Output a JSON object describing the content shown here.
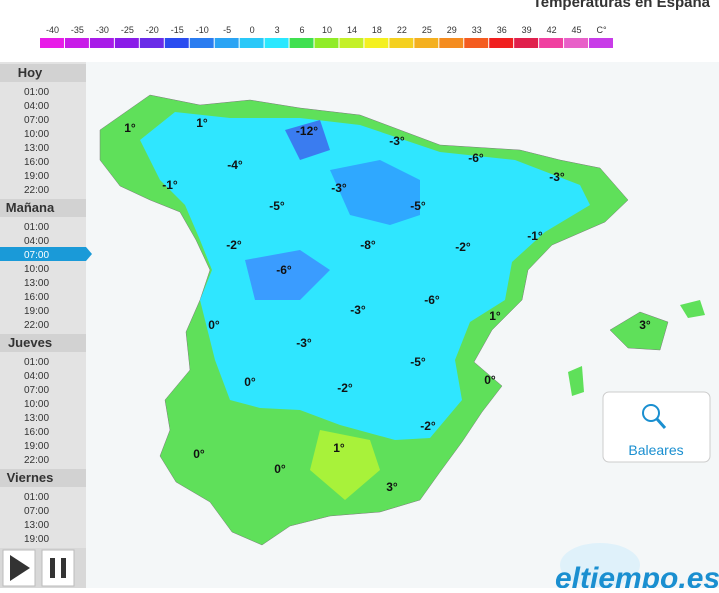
{
  "header": {
    "title": "Temperaturas en España",
    "scale": [
      -40,
      -35,
      -30,
      -25,
      -20,
      -15,
      -10,
      -5,
      0,
      3,
      6,
      10,
      14,
      18,
      22,
      25,
      29,
      33,
      36,
      39,
      42,
      45
    ],
    "unit": "C°"
  },
  "sidebar": {
    "days": [
      {
        "name": "Hoy",
        "times": [
          "01:00",
          "04:00",
          "07:00",
          "10:00",
          "13:00",
          "16:00",
          "19:00",
          "22:00"
        ]
      },
      {
        "name": "Mañana",
        "times": [
          "01:00",
          "04:00",
          "07:00",
          "10:00",
          "13:00",
          "16:00",
          "19:00",
          "22:00"
        ]
      },
      {
        "name": "Jueves",
        "times": [
          "01:00",
          "04:00",
          "07:00",
          "10:00",
          "13:00",
          "16:00",
          "19:00",
          "22:00"
        ]
      },
      {
        "name": "Viernes",
        "times": [
          "01:00",
          "07:00",
          "13:00",
          "19:00"
        ]
      }
    ]
  },
  "map": {
    "labels": [
      "1°",
      "1°",
      "-12°",
      "-3°",
      "-6°",
      "-4°",
      "-1°",
      "-3°",
      "-3°",
      "-5°",
      "-5°",
      "-1°",
      "-2°",
      "-8°",
      "-2°",
      "-6°",
      "-6°",
      "0°",
      "-3°",
      "1°",
      "3°",
      "-3°",
      "-5°",
      "0°",
      "-2°",
      "0°",
      "-2°",
      "1°",
      "0°",
      "0°",
      "3°"
    ]
  },
  "button": {
    "label": "Baleares"
  },
  "logo": {
    "text": "eltiempo.es"
  }
}
